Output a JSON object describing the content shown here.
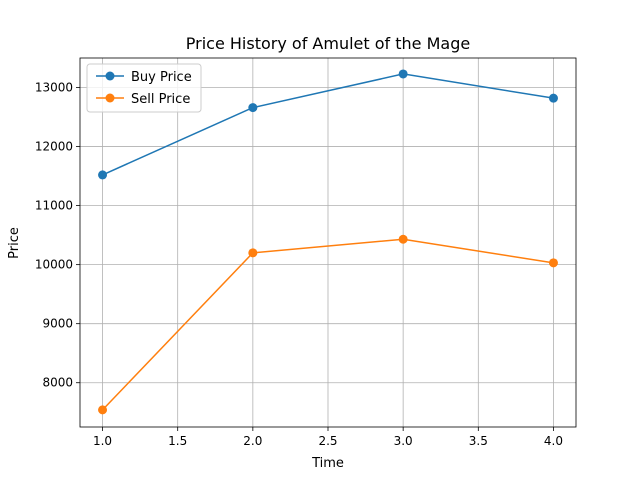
{
  "chart_data": {
    "type": "line",
    "title": "Price History of Amulet of the Mage",
    "xlabel": "Time",
    "ylabel": "Price",
    "x": [
      1,
      2,
      3,
      4
    ],
    "xlim": [
      0.85,
      4.15
    ],
    "ylim": [
      7250,
      13500
    ],
    "xticks": [
      "1.0",
      "1.5",
      "2.0",
      "2.5",
      "3.0",
      "3.5",
      "4.0"
    ],
    "yticks": [
      "8000",
      "9000",
      "10000",
      "11000",
      "12000",
      "13000"
    ],
    "grid": true,
    "legend_position": "top-left",
    "series": [
      {
        "name": "Buy Price",
        "color": "#1f77b4",
        "values": [
          11520,
          12660,
          13230,
          12820
        ]
      },
      {
        "name": "Sell Price",
        "color": "#ff7f0e",
        "values": [
          7540,
          10200,
          10430,
          10030
        ]
      }
    ]
  }
}
